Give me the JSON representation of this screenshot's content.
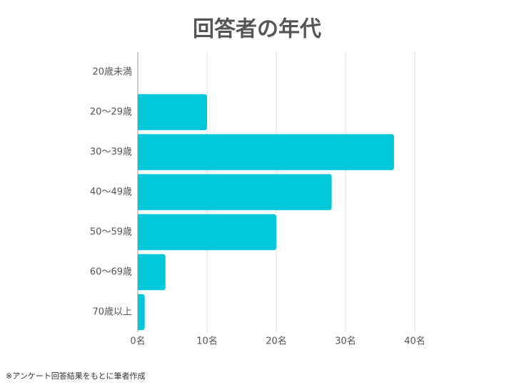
{
  "chart_data": {
    "type": "bar",
    "orientation": "horizontal",
    "title": "回答者の年代",
    "categories": [
      "20歳未満",
      "20〜29歳",
      "30〜39歳",
      "40〜49歳",
      "50〜59歳",
      "60〜69歳",
      "70歳以上"
    ],
    "values": [
      0,
      10,
      37,
      28,
      20,
      4,
      1
    ],
    "color": "#00c8d8",
    "xlim": [
      0,
      40
    ],
    "xticks": [
      {
        "value": 0,
        "label": "0名"
      },
      {
        "value": 10,
        "label": "10名"
      },
      {
        "value": 20,
        "label": "20名"
      },
      {
        "value": 30,
        "label": "30名"
      },
      {
        "value": 40,
        "label": "40名"
      }
    ],
    "grid": true,
    "note": "※アンケート回答結果をもとに筆者作成"
  }
}
